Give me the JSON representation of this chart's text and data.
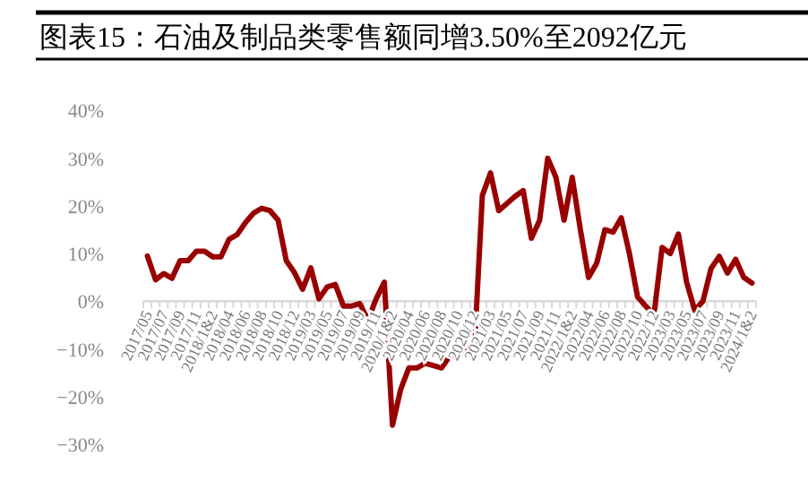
{
  "chart_data": {
    "type": "line",
    "title": "图表15：石油及制品类零售额同增3.50%至2092亿元",
    "categories": [
      "2017/05",
      null,
      "2017/07",
      null,
      "2017/09",
      null,
      "2017/11",
      null,
      "2018/1&2",
      null,
      "2018/04",
      null,
      "2018/06",
      null,
      "2018/08",
      null,
      "2018/10",
      null,
      "2018/12",
      null,
      "2019/03",
      null,
      "2019/05",
      null,
      "2019/07",
      null,
      "2019/09",
      null,
      "2019/11",
      null,
      "2020/1&2",
      null,
      "2020/04",
      null,
      "2020/06",
      null,
      "2020/08",
      null,
      "2020/10",
      null,
      "2020/12",
      null,
      "2021/03",
      null,
      "2021/05",
      null,
      "2021/07",
      null,
      "2021/09",
      null,
      "2021/11",
      null,
      "2022/1&2",
      null,
      "2022/04",
      null,
      "2022/06",
      null,
      "2022/08",
      null,
      "2022/10",
      null,
      "2022/12",
      null,
      "2023/03",
      null,
      "2023/05",
      null,
      "2023/07",
      null,
      "2023/09",
      null,
      "2023/11",
      null,
      "2024/1&2"
    ],
    "series": [
      {
        "color": "#990000",
        "values": [
          9.5,
          4.5,
          5.8,
          4.8,
          8.5,
          8.5,
          10.5,
          10.5,
          9.3,
          9.3,
          13,
          14,
          16.5,
          18.5,
          19.5,
          19,
          17,
          8.5,
          6,
          2.5,
          7,
          0.5,
          3,
          3.5,
          -1,
          -1,
          -0.5,
          -4,
          0.5,
          4,
          -26,
          -18.5,
          -14,
          -14,
          -13,
          -13.5,
          -14,
          -11.5,
          -11,
          -10.5,
          -10.7,
          22.2,
          26.9,
          19,
          20.5,
          22,
          23.2,
          13.2,
          16.9,
          30,
          26,
          17,
          26,
          15,
          5,
          8,
          15,
          14.5,
          17.5,
          10,
          0.9,
          -1,
          -2.9,
          11.3,
          10,
          14.1,
          4,
          -1.9,
          0,
          6.9,
          9.4,
          5.9,
          8.8,
          5,
          3.8
        ]
      }
    ],
    "ylim": [
      -30,
      40
    ],
    "yticks": [
      {
        "value": -30,
        "label": "−30%"
      },
      {
        "value": -20,
        "label": "−20%"
      },
      {
        "value": -10,
        "label": "−10%"
      },
      {
        "value": 0,
        "label": "0%"
      },
      {
        "value": 10,
        "label": "10%"
      },
      {
        "value": 20,
        "label": "20%"
      },
      {
        "value": 30,
        "label": "30%"
      },
      {
        "value": 40,
        "label": "40%"
      }
    ],
    "grid": false,
    "marker": "none",
    "line_style": "solid"
  }
}
